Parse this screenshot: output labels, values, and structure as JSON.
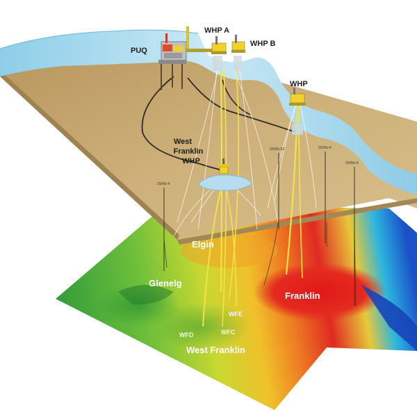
{
  "top_labels": {
    "puq": "PUQ",
    "whp_a": "WHP A",
    "whp_b": "WHP B",
    "whp": "WHP",
    "west_franklin_whp_1": "West",
    "west_franklin_whp_2": "Franklin",
    "west_franklin_whp_3": "WHP"
  },
  "well_tags": {
    "w1": "29/5b-4",
    "w2": "29/5b-6Z",
    "w3": "29/5b-4",
    "w4": "29/5b-8"
  },
  "field_labels": {
    "elgin": "Elgin",
    "glenelg": "Glenelg",
    "franklin": "Franklin",
    "west_franklin": "West Franklin",
    "wfe": "WFE",
    "wfc": "WFC",
    "wfd": "WFD"
  },
  "colors": {
    "sea": "#c6e6f3",
    "seabed": "#c2a570",
    "pipeline": "#2a2a2a",
    "well_trajectory": "#f2e04a",
    "platform": "#f2d22a"
  }
}
